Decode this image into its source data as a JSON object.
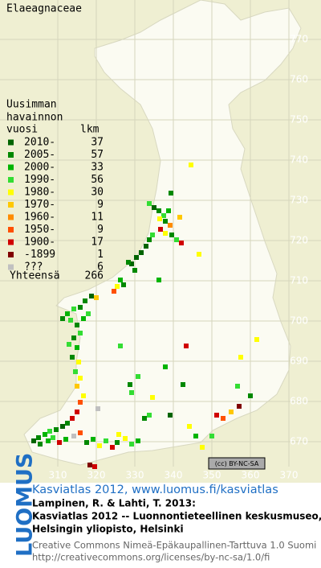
{
  "title": "Elaeagnaceae",
  "legend": {
    "heading": [
      "Uusimman",
      "havainnon",
      "vuosi"
    ],
    "count_heading": "lkm",
    "rows": [
      {
        "label": "2010-",
        "count": 37,
        "color": "#006400"
      },
      {
        "label": "2005-",
        "count": 57,
        "color": "#008800"
      },
      {
        "label": "2000-",
        "count": 33,
        "color": "#00b400"
      },
      {
        "label": "1990-",
        "count": 56,
        "color": "#33dd33"
      },
      {
        "label": "1980-",
        "count": 30,
        "color": "#ffff00"
      },
      {
        "label": "1970-",
        "count": 9,
        "color": "#ffc800"
      },
      {
        "label": "1960-",
        "count": 11,
        "color": "#ff8c00"
      },
      {
        "label": "1950-",
        "count": 9,
        "color": "#ff5000"
      },
      {
        "label": "1900-",
        "count": 17,
        "color": "#d00000"
      },
      {
        "label": "-1899",
        "count": 1,
        "color": "#800000"
      },
      {
        "label": "???",
        "count": 6,
        "color": "#c0c0c0"
      }
    ],
    "total_label": "Yhteensä",
    "total": 266
  },
  "map": {
    "x_labels": [
      310,
      320,
      330,
      340,
      350,
      360,
      370
    ],
    "y_labels": [
      770,
      760,
      750,
      740,
      730,
      720,
      710,
      700,
      690,
      680,
      670
    ]
  },
  "cc_badge": "(cc) BY-NC-SA",
  "footer": {
    "logo": "LUOMUS",
    "link": "Kasviatlas 2012, www.luomus.fi/kasviatlas",
    "citation": [
      "Lampinen, R. & Lahti, T. 2013:",
      "Kasviatlas 2012 -- Luonnontieteellinen keskusmuseo,",
      "Helsingin yliopisto, Helsinki"
    ],
    "license": [
      "Creative Commons Nimeä-Epäkaupallinen-Tarttuva 1.0 Suomi",
      "http://creativecommons.org/licenses/by-nc-sa/1.0/fi"
    ]
  }
}
